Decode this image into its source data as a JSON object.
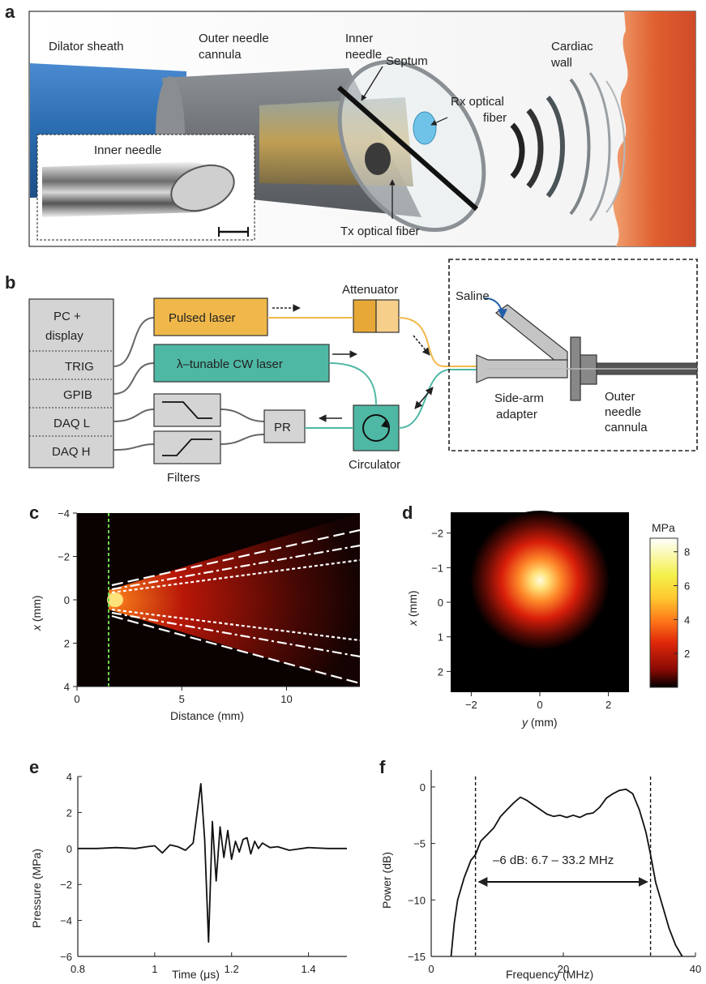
{
  "panels": {
    "a": {
      "label": "a",
      "labels": {
        "dilator_sheath": "Dilator sheath",
        "outer_needle": [
          "Outer needle",
          "cannula"
        ],
        "inner_needle": [
          "Inner",
          "needle"
        ],
        "septum": "Septum",
        "rx_fiber": [
          "Rx optical",
          "fiber"
        ],
        "tx_fiber": "Tx optical fiber",
        "cardiac_wall": [
          "Cardiac",
          "wall"
        ],
        "inset_title": "Inner needle"
      },
      "colors": {
        "sheath": "#2b6cb0",
        "cannula": "#7a7e82",
        "wall": "#d9542b",
        "fiber_rx": "#6fc3e8",
        "fiber_tx": "#e9b44c"
      }
    },
    "b": {
      "label": "b",
      "pc_rows": [
        [
          "PC +",
          "display"
        ],
        [
          "TRIG"
        ],
        [
          "GPIB"
        ],
        [
          "DAQ L"
        ],
        [
          "DAQ H"
        ]
      ],
      "pulsed_laser": "Pulsed laser",
      "cw_laser": "λ–tunable CW laser",
      "attenuator": "Attenuator",
      "pr": "PR",
      "filters": "Filters",
      "circulator": "Circulator",
      "saline": "Saline",
      "side_arm": [
        "Side-arm",
        "adapter"
      ],
      "outer_cannula": [
        "Outer",
        "needle",
        "cannula"
      ],
      "colors": {
        "pulsed": "#f0b84a",
        "cw": "#4fb8a4",
        "gray_box": "#d4d4d4",
        "fiber_orange": "#f0b84a",
        "fiber_teal": "#4fb8a4",
        "saline_arrow": "#1f5fa8"
      }
    },
    "c": {
      "label": "c",
      "xlabel": "Distance (mm)",
      "ylabel_var": "x",
      "ylabel_unit": " (mm)",
      "xticks": [
        0,
        5,
        10
      ],
      "yticks": [
        -4,
        -2,
        0,
        2,
        4
      ],
      "xlim": [
        0,
        13.5
      ],
      "ylim": [
        -4,
        4
      ]
    },
    "d": {
      "label": "d",
      "xlabel_var": "y",
      "xlabel_unit": " (mm)",
      "ylabel_var": "x",
      "ylabel_unit": " (mm)",
      "xticks": [
        -2,
        0,
        2
      ],
      "yticks": [
        -2,
        -1,
        0,
        1,
        2
      ],
      "xlim": [
        -2.6,
        2.6
      ],
      "ylim": [
        -2.6,
        2.6
      ],
      "colorbar_title": "MPa",
      "colorbar_ticks": [
        2,
        4,
        6,
        8
      ],
      "colorbar_range": [
        0,
        8.8
      ]
    },
    "e": {
      "label": "e",
      "xlabel": "Time (μs)",
      "ylabel": "Pressure (MPa)"
    },
    "f": {
      "label": "f",
      "xlabel": "Frequency (MHz)",
      "ylabel": "Power (dB)",
      "annotation": "–6 dB: 6.7 – 33.2 MHz"
    }
  },
  "chart_data": [
    {
      "type": "line",
      "panel": "e",
      "xlabel": "Time (μs)",
      "ylabel": "Pressure (MPa)",
      "xlim": [
        0.8,
        1.5
      ],
      "ylim": [
        -6,
        4
      ],
      "xticks": [
        0.8,
        1,
        1.2,
        1.4
      ],
      "yticks": [
        -6,
        -4,
        -2,
        0,
        2,
        4
      ],
      "x": [
        0.8,
        0.85,
        0.9,
        0.95,
        0.98,
        1.0,
        1.02,
        1.04,
        1.06,
        1.08,
        1.1,
        1.12,
        1.13,
        1.14,
        1.15,
        1.16,
        1.17,
        1.18,
        1.19,
        1.2,
        1.21,
        1.22,
        1.23,
        1.24,
        1.25,
        1.26,
        1.27,
        1.28,
        1.3,
        1.32,
        1.35,
        1.4,
        1.45,
        1.5
      ],
      "y": [
        0,
        0,
        0.05,
        0,
        0.1,
        0.15,
        -0.25,
        0.2,
        0.1,
        -0.1,
        0.3,
        3.6,
        0.5,
        -5.2,
        1.5,
        -1.8,
        1.2,
        -0.5,
        1.0,
        -0.6,
        0.4,
        -0.2,
        0.5,
        0.6,
        -0.3,
        0.4,
        0.0,
        0.3,
        0.05,
        0.1,
        -0.1,
        0.05,
        0.0,
        0.0
      ]
    },
    {
      "type": "line",
      "panel": "f",
      "xlabel": "Frequency (MHz)",
      "ylabel": "Power (dB)",
      "xlim": [
        0,
        40
      ],
      "ylim": [
        -15,
        1.5
      ],
      "xticks": [
        0,
        20,
        40
      ],
      "yticks": [
        -15,
        -10,
        -5,
        0
      ],
      "x": [
        3,
        3.5,
        4,
        5,
        6,
        6.7,
        7.5,
        8.5,
        9.5,
        10.5,
        11.5,
        12.5,
        13.5,
        14.5,
        15.5,
        16.5,
        17.5,
        18.5,
        19.5,
        20.5,
        21.5,
        22.5,
        23.5,
        24.5,
        25.5,
        26.5,
        27.5,
        28.5,
        29.5,
        30.5,
        31.5,
        32.5,
        33.2,
        34,
        35,
        36,
        37,
        38
      ],
      "y": [
        -15,
        -12,
        -10,
        -8,
        -6.5,
        -6,
        -4.8,
        -4.2,
        -3.6,
        -2.6,
        -2.0,
        -1.4,
        -0.9,
        -1.2,
        -1.6,
        -2.0,
        -2.4,
        -2.6,
        -2.5,
        -2.7,
        -2.5,
        -2.7,
        -2.4,
        -2.3,
        -1.8,
        -1.0,
        -0.6,
        -0.3,
        -0.2,
        -0.6,
        -2.0,
        -4.0,
        -6.0,
        -8.5,
        -10.5,
        -12.5,
        -14.0,
        -15.0
      ],
      "markers": [
        6.7,
        33.2
      ],
      "annotation": "–6 dB: 6.7 – 33.2 MHz"
    }
  ]
}
